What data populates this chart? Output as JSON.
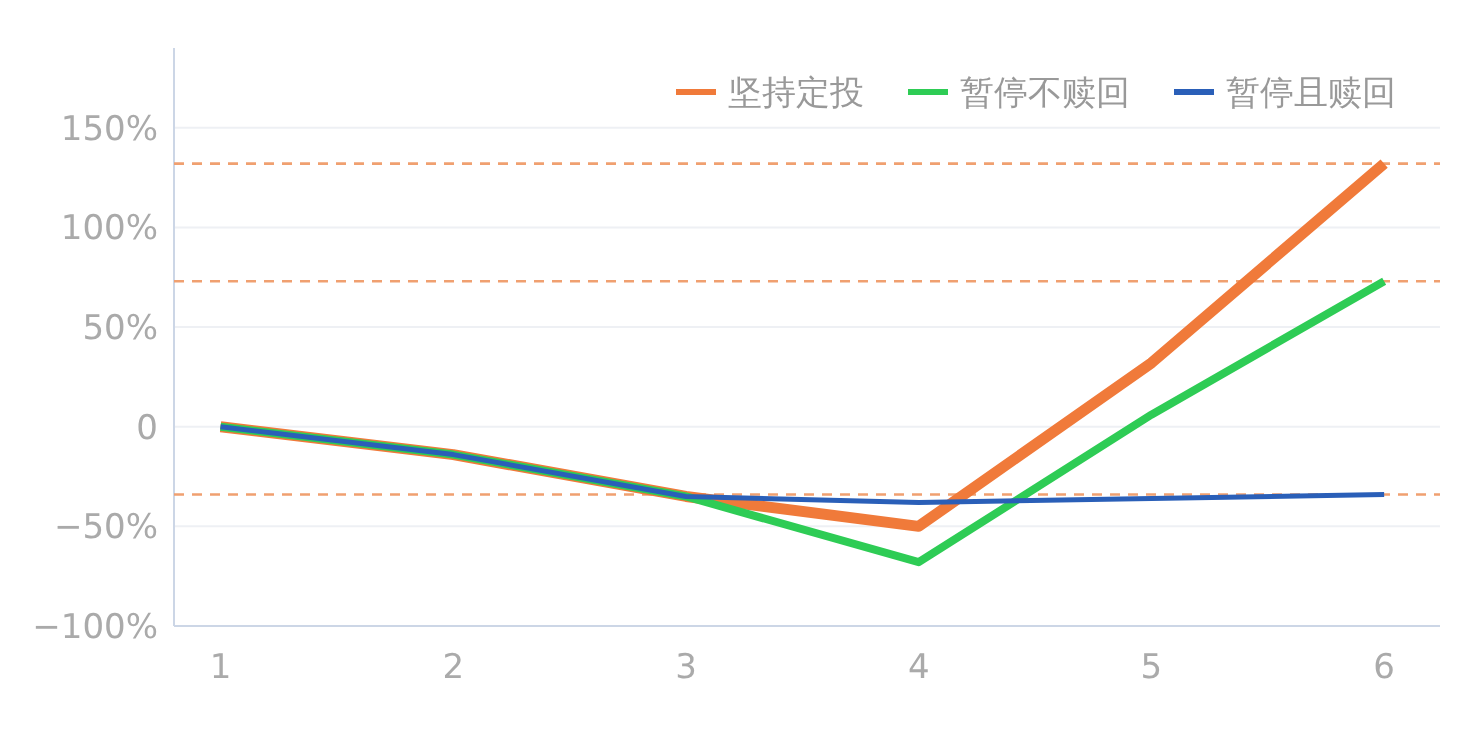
{
  "chart_data": {
    "type": "line",
    "x": [
      1,
      2,
      3,
      4,
      5,
      6
    ],
    "xlim": [
      0.8,
      6.24
    ],
    "xticks": [
      1,
      2,
      3,
      4,
      5,
      6
    ],
    "ylim": [
      -100,
      190
    ],
    "yticks": [
      {
        "value": -100,
        "label": "−100%"
      },
      {
        "value": -50,
        "label": "−50%"
      },
      {
        "value": 0,
        "label": "0"
      },
      {
        "value": 50,
        "label": "50%"
      },
      {
        "value": 100,
        "label": "100%"
      },
      {
        "value": 150,
        "label": "150%"
      }
    ],
    "grid": "y",
    "legend": "top right",
    "marker": "none",
    "line_style": "solid",
    "series": [
      {
        "name": "坚持定投",
        "color": "#f07a3a",
        "values": [
          0,
          -14,
          -35,
          -50,
          32,
          132
        ]
      },
      {
        "name": "暂停不赎回",
        "color": "#2ecc55",
        "values": [
          0,
          -14,
          -35,
          -68,
          6,
          73
        ]
      },
      {
        "name": "暂停且赎回",
        "color": "#2a5fb8",
        "values": [
          0,
          -14,
          -35,
          -38,
          -36,
          -34
        ]
      }
    ],
    "ref_lines": [
      {
        "axis": "y",
        "value": 132,
        "color": "#f0a070",
        "line_style": "dashed"
      },
      {
        "axis": "y",
        "value": 73,
        "color": "#f0a070",
        "line_style": "dashed"
      },
      {
        "axis": "y",
        "value": -34,
        "color": "#f0a070",
        "line_style": "dashed"
      }
    ]
  }
}
